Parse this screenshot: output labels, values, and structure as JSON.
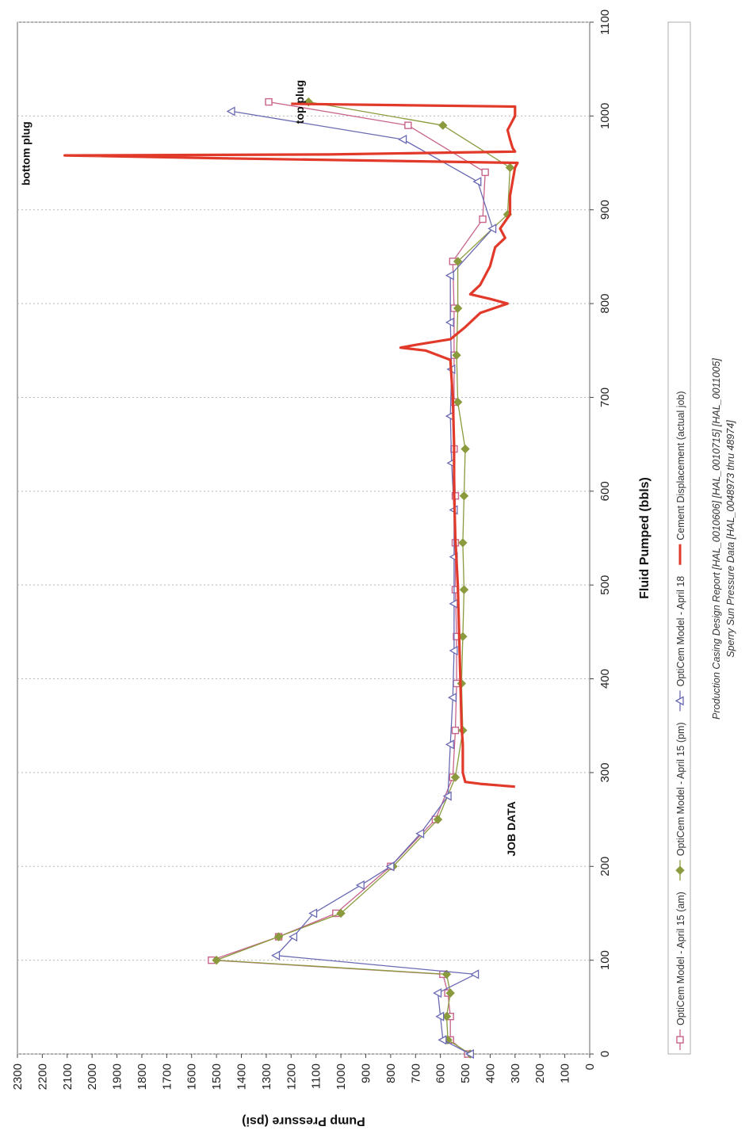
{
  "chart_data": {
    "type": "line",
    "xlabel": "Fluid Pumped (bbls)",
    "ylabel": "Pump Pressure (psi)",
    "xlim": [
      0,
      1100
    ],
    "ylim": [
      0,
      2300
    ],
    "x_ticks": [
      "0",
      "100",
      "200",
      "300",
      "400",
      "500",
      "600",
      "700",
      "800",
      "900",
      "1000",
      "1100"
    ],
    "y_ticks": [
      "0",
      "100",
      "200",
      "300",
      "400",
      "500",
      "600",
      "700",
      "800",
      "900",
      "1000",
      "1100",
      "1200",
      "1300",
      "1400",
      "1500",
      "1600",
      "1700",
      "1800",
      "1900",
      "2000",
      "2100",
      "2200",
      "2300"
    ],
    "grid": "vertical dashed",
    "orientation": "rotated 90 degrees counter-clockwise",
    "annotations": [
      {
        "text": "bottom plug",
        "x": 960,
        "y": 2250
      },
      {
        "text": "top plug",
        "x": 1015,
        "y": 1150
      },
      {
        "text": "JOB DATA",
        "x": 240,
        "y": 300
      }
    ],
    "series": [
      {
        "name": "OptiCem Model - April 15 (am)",
        "color": "#c8648c",
        "marker": "square",
        "x": [
          0,
          15,
          40,
          65,
          85,
          100,
          125,
          150,
          200,
          250,
          295,
          345,
          395,
          445,
          495,
          545,
          595,
          645,
          695,
          745,
          795,
          845,
          890,
          940,
          990,
          1015
        ],
        "y": [
          490,
          560,
          560,
          570,
          590,
          1520,
          1250,
          1020,
          800,
          620,
          550,
          540,
          535,
          535,
          540,
          540,
          540,
          545,
          545,
          545,
          545,
          550,
          430,
          420,
          730,
          1290
        ]
      },
      {
        "name": "OptiCem Model - April 15 (pm)",
        "color": "#8a9a3c",
        "marker": "diamond",
        "x": [
          0,
          15,
          40,
          65,
          85,
          100,
          125,
          150,
          200,
          250,
          295,
          345,
          395,
          445,
          495,
          545,
          595,
          645,
          695,
          745,
          795,
          845,
          895,
          945,
          990,
          1015
        ],
        "y": [
          480,
          570,
          575,
          560,
          575,
          1500,
          1250,
          1000,
          790,
          610,
          540,
          510,
          515,
          510,
          505,
          510,
          505,
          500,
          530,
          535,
          530,
          530,
          330,
          320,
          590,
          1130
        ]
      },
      {
        "name": "OptiCem Model - April 18",
        "color": "#6a6ab4",
        "marker": "triangle",
        "x": [
          0,
          15,
          40,
          65,
          85,
          105,
          125,
          150,
          180,
          200,
          235,
          275,
          330,
          380,
          430,
          480,
          530,
          580,
          630,
          680,
          730,
          780,
          830,
          880,
          930,
          975,
          1005
        ],
        "y": [
          480,
          590,
          600,
          610,
          460,
          1260,
          1190,
          1110,
          920,
          800,
          680,
          570,
          560,
          550,
          545,
          545,
          545,
          545,
          555,
          560,
          555,
          560,
          560,
          390,
          450,
          750,
          1440
        ]
      },
      {
        "name": "Cement Displacement (actual job)",
        "color": "#e23a2a",
        "marker": "none",
        "x": [
          285,
          288,
          290,
          300,
          330,
          350,
          400,
          450,
          500,
          550,
          600,
          650,
          700,
          740,
          750,
          753,
          756,
          762,
          775,
          790,
          800,
          805,
          810,
          820,
          840,
          860,
          870,
          880,
          895,
          915,
          945,
          950,
          955,
          958,
          959,
          962,
          966,
          975,
          985,
          995,
          1000,
          1005,
          1010,
          1013
        ],
        "y": [
          300,
          440,
          500,
          510,
          510,
          515,
          520,
          525,
          530,
          540,
          545,
          545,
          550,
          560,
          660,
          760,
          700,
          560,
          500,
          440,
          330,
          400,
          480,
          440,
          400,
          380,
          340,
          360,
          320,
          320,
          300,
          290,
          1500,
          2110,
          1050,
          300,
          310,
          320,
          330,
          310,
          300,
          300,
          300,
          1200
        ]
      }
    ],
    "legend_position": "bottom",
    "source_note": [
      "Production Casing Design Report [HAL_0010606] [HAL_0010715] [HAL_0011005]",
      "Sperry Sun Pressure Data [HAL_0048973 thru 48974]"
    ]
  }
}
